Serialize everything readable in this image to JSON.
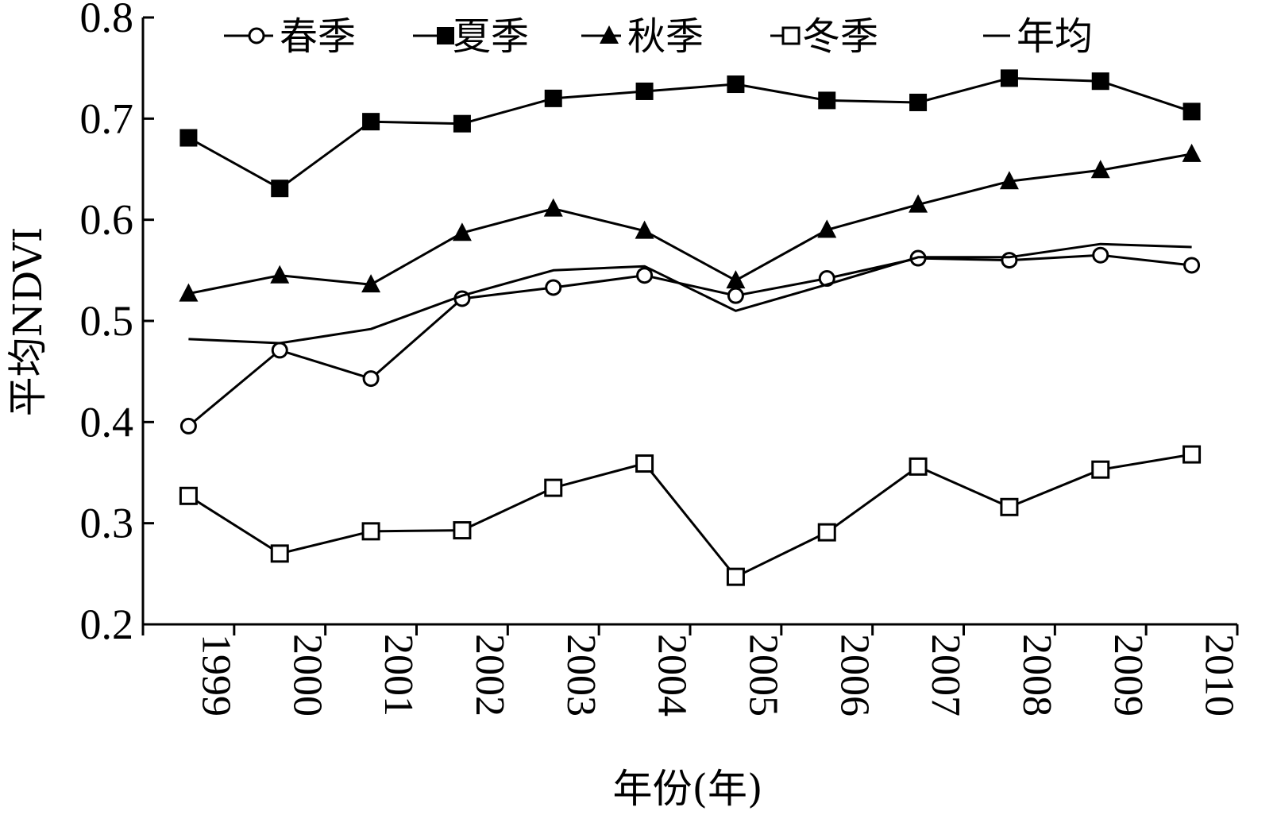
{
  "chart_data": {
    "type": "line",
    "xlabel": "年份(年)",
    "ylabel": "平均NDVI",
    "ylim": [
      0.2,
      0.8
    ],
    "yticks": [
      0.2,
      0.3,
      0.4,
      0.5,
      0.6,
      0.7,
      0.8
    ],
    "ytick_labels": [
      "0.2",
      "0.3",
      "0.4",
      "0.5",
      "0.6",
      "0.7",
      "0.8"
    ],
    "categories": [
      "1999",
      "2000",
      "2001",
      "2002",
      "2003",
      "2004",
      "2005",
      "2006",
      "2007",
      "2008",
      "2009",
      "2010"
    ],
    "legend_position": "top",
    "grid": false,
    "series": [
      {
        "name": "春季",
        "marker": "circle-open",
        "values": [
          0.396,
          0.471,
          0.443,
          0.522,
          0.533,
          0.545,
          0.525,
          0.542,
          0.562,
          0.56,
          0.565,
          0.555
        ]
      },
      {
        "name": "夏季",
        "marker": "square-filled",
        "values": [
          0.681,
          0.631,
          0.697,
          0.695,
          0.72,
          0.727,
          0.734,
          0.718,
          0.716,
          0.74,
          0.737,
          0.707
        ]
      },
      {
        "name": "秋季",
        "marker": "triangle-filled",
        "values": [
          0.527,
          0.545,
          0.536,
          0.587,
          0.611,
          0.589,
          0.54,
          0.59,
          0.615,
          0.638,
          0.649,
          0.665
        ]
      },
      {
        "name": "冬季",
        "marker": "square-open",
        "values": [
          0.327,
          0.27,
          0.292,
          0.293,
          0.335,
          0.359,
          0.247,
          0.291,
          0.356,
          0.316,
          0.353,
          0.368
        ]
      },
      {
        "name": "年均",
        "marker": "none",
        "values": [
          0.482,
          0.478,
          0.492,
          0.525,
          0.55,
          0.554,
          0.51,
          0.536,
          0.563,
          0.563,
          0.576,
          0.573
        ]
      }
    ]
  }
}
